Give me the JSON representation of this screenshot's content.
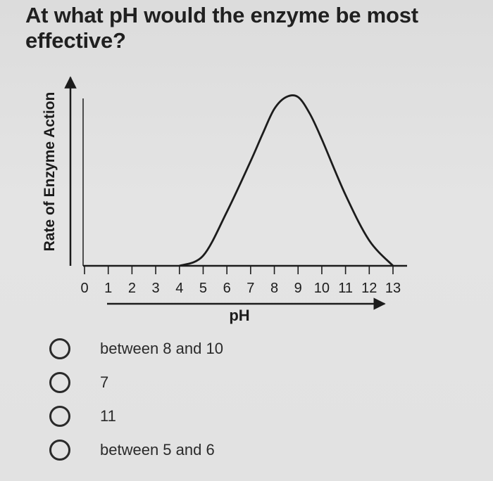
{
  "question": "At what pH would the enzyme be most effective?",
  "chart_data": {
    "type": "line",
    "title": "",
    "xlabel": "pH",
    "ylabel": "Rate of Enzyme Action",
    "x_ticks": [
      "0",
      "1",
      "2",
      "3",
      "4",
      "5",
      "6",
      "7",
      "8",
      "9",
      "10",
      "11",
      "12",
      "13"
    ],
    "xlim": [
      0,
      13
    ],
    "ylim": [
      0,
      1
    ],
    "series": [
      {
        "x": [
          4,
          5,
          6,
          7,
          7.5,
          8,
          8.5,
          9,
          9.5,
          10,
          11,
          12,
          13
        ],
        "y": [
          0,
          0.06,
          0.32,
          0.62,
          0.78,
          0.93,
          1.0,
          1.0,
          0.9,
          0.75,
          0.42,
          0.15,
          0
        ]
      }
    ],
    "grid": false,
    "legend": "none"
  },
  "options": [
    {
      "label": "between 8 and 10"
    },
    {
      "label": "7"
    },
    {
      "label": "11"
    },
    {
      "label": "between 5 and 6"
    }
  ],
  "colors": {
    "background": "#e0e0e0",
    "ink": "#1c1c1c"
  }
}
